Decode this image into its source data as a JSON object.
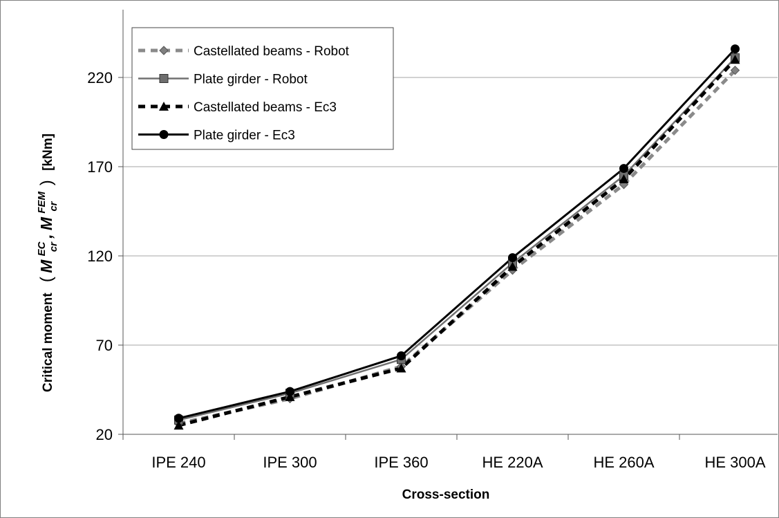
{
  "chart_data": {
    "type": "line",
    "categories": [
      "IPE 240",
      "IPE 300",
      "IPE 360",
      "HE 220A",
      "HE 260A",
      "HE 300A"
    ],
    "xlabel": "Cross-section",
    "ylabel": {
      "prefix": "Critical moment",
      "symbol": "M",
      "sub": "cr",
      "sup1": "EC",
      "sup2": "FEM",
      "unit": "[kNm]"
    },
    "ylim": [
      20,
      250
    ],
    "yticks": [
      20,
      70,
      120,
      170,
      220
    ],
    "grid": true,
    "legend_position": "top-left",
    "series": [
      {
        "name": "Castellated beams - Robot",
        "values": [
          26,
          40,
          58,
          112,
          160,
          224
        ],
        "color": "#8a8a8a",
        "dash": "dashed",
        "marker": "diamond"
      },
      {
        "name": "Plate girder - Robot",
        "values": [
          28,
          43,
          62,
          116,
          165,
          231
        ],
        "color": "#707070",
        "dash": "solid",
        "marker": "square"
      },
      {
        "name": "Castellated beams - Ec3",
        "values": [
          25,
          41,
          57,
          114,
          163,
          230
        ],
        "color": "#000000",
        "dash": "dashed",
        "marker": "triangle"
      },
      {
        "name": "Plate girder - Ec3",
        "values": [
          29,
          44,
          64,
          119,
          169,
          236
        ],
        "color": "#000000",
        "dash": "solid",
        "marker": "circle"
      }
    ]
  }
}
